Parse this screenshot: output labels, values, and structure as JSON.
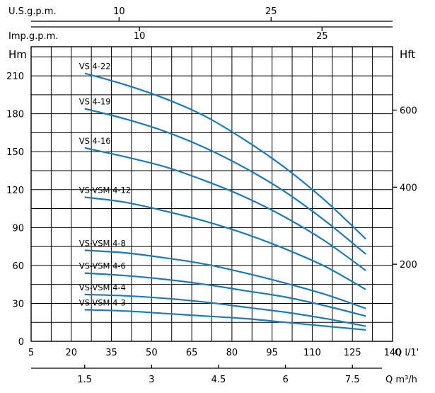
{
  "chart_data": {
    "type": "line",
    "title": "",
    "top_axis_usgpm": {
      "label": "U.S.g.p.m.",
      "ticks": [
        10,
        25
      ]
    },
    "top_axis_impgpm": {
      "label": "Imp.g.p.m.",
      "ticks": [
        10,
        25
      ]
    },
    "ylabel_left": "Hm",
    "ylabel_right": "Hft",
    "xlabel_lmin": "Q l/1'",
    "xlabel_m3h": "Q m³/h",
    "x_lmin_ticks": [
      5,
      20,
      35,
      50,
      65,
      80,
      95,
      110,
      125,
      140
    ],
    "x_m3h_ticks": [
      "1.5",
      "3",
      "4.5",
      "6",
      "7.5"
    ],
    "y_hm_ticks": [
      0,
      30,
      60,
      90,
      120,
      150,
      180,
      210
    ],
    "y_hft_ticks": [
      200,
      400,
      600
    ],
    "xlim_lmin": [
      5,
      140
    ],
    "ylim_hm": [
      0,
      233
    ],
    "series": [
      {
        "name": "VS 4-22",
        "x": [
          25,
          40,
          55,
          70,
          85,
          100,
          115,
          130
        ],
        "y": [
          212,
          203,
          192,
          178,
          159,
          137,
          111,
          81
        ]
      },
      {
        "name": "VS 4-19",
        "x": [
          25,
          40,
          55,
          70,
          85,
          100,
          115,
          130
        ],
        "y": [
          184,
          176,
          166,
          153,
          137,
          118,
          95,
          69
        ]
      },
      {
        "name": "VS 4-16",
        "x": [
          25,
          40,
          55,
          70,
          85,
          100,
          115,
          130
        ],
        "y": [
          153,
          146,
          138,
          127,
          114,
          98,
          79,
          56
        ]
      },
      {
        "name": "VS-VSM 4-12",
        "x": [
          25,
          40,
          55,
          70,
          85,
          100,
          115,
          130
        ],
        "y": [
          114,
          110,
          103,
          95,
          85,
          73,
          59,
          41
        ]
      },
      {
        "name": "VS-VSM 4-8",
        "x": [
          25,
          40,
          55,
          70,
          85,
          100,
          115,
          130
        ],
        "y": [
          72,
          70,
          66,
          61,
          54,
          46,
          37,
          26
        ]
      },
      {
        "name": "VS-VSM 4-6",
        "x": [
          25,
          40,
          55,
          70,
          85,
          100,
          115,
          130
        ],
        "y": [
          54,
          52,
          49,
          45,
          40,
          35,
          28,
          20
        ]
      },
      {
        "name": "VS-VSM 4-4",
        "x": [
          25,
          40,
          55,
          70,
          85,
          100,
          115,
          130
        ],
        "y": [
          37,
          36,
          34,
          31,
          27,
          23,
          18,
          12
        ]
      },
      {
        "name": "VS-VSM 4-3",
        "x": [
          25,
          40,
          55,
          70,
          85,
          100,
          115,
          130
        ],
        "y": [
          25,
          24,
          22,
          20,
          18,
          15,
          12,
          9
        ]
      }
    ]
  },
  "colors": {
    "curve": "#1b7ab8",
    "grid": "#000000"
  }
}
